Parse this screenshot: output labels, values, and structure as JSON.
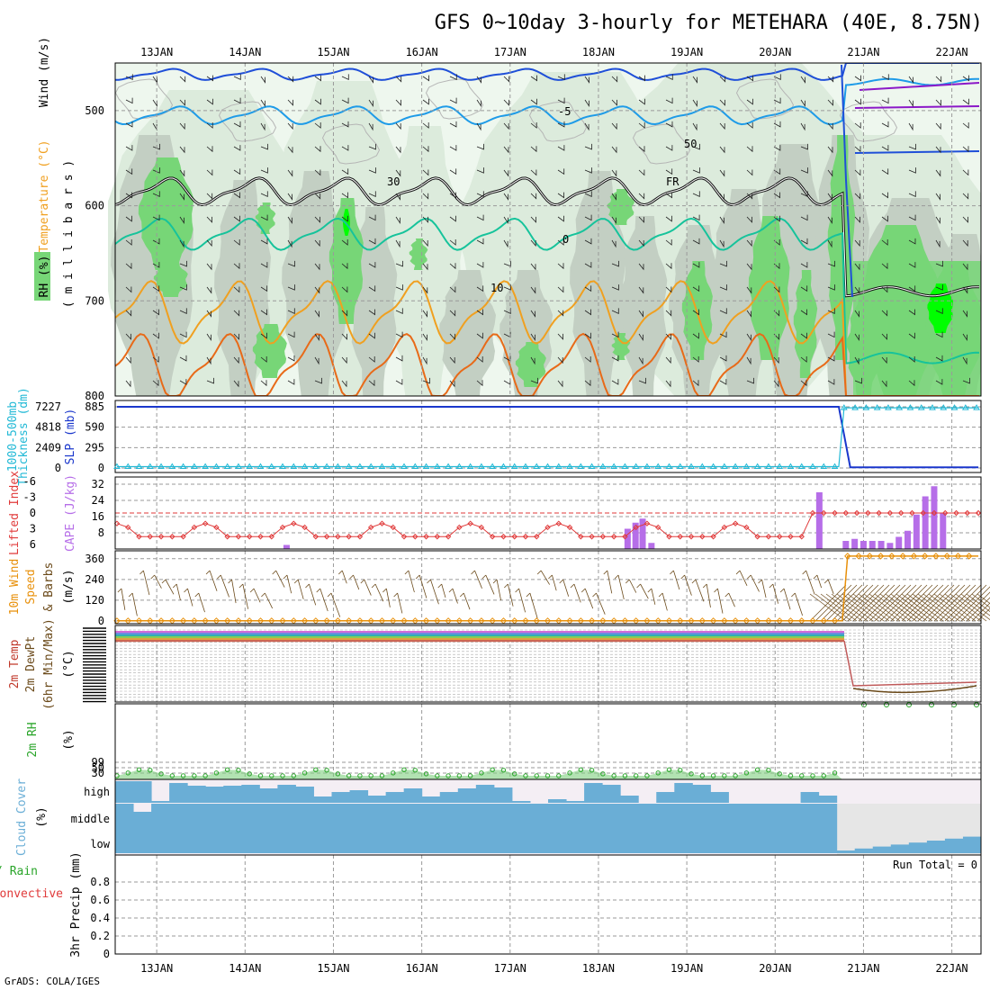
{
  "title": "GFS 0~10day 3-hourly for METEHARA (40E, 8.75N)",
  "footer_credit": "GrADS: COLA/IGES",
  "colors": {
    "rh_dark": "#c3cfc3",
    "rh_mid": "#dcebdc",
    "rh_light": "#eef7ee",
    "rh_green": "#77d677",
    "rh_bright": "#00ff00",
    "temp_blue": "#1f4fd8",
    "temp_lightblue": "#1e9be8",
    "temp_teal": "#16c39b",
    "temp_orange": "#f0a020",
    "temp_darkorange": "#e86a18",
    "temp_purple": "#8b18c8",
    "slp_line": "#1a37cc",
    "thick_line": "#22b9d6",
    "li_line": "#e03a3a",
    "cape_bar": "#b66ee8",
    "wind_speed": "#e8900a",
    "barb": "#6b4a1a",
    "rh2m": "#2aa52a",
    "cloud": "#6aaed6",
    "cloud_bg": "#f4eef4"
  },
  "chart_data": {
    "type": "meteogram",
    "location": "METEHARA (40E, 8.75N)",
    "x_axis": {
      "dates": [
        "13JAN",
        "14JAN",
        "15JAN",
        "16JAN",
        "17JAN",
        "18JAN",
        "19JAN",
        "20JAN",
        "21JAN",
        "22JAN"
      ],
      "start_day": 12.53,
      "end_day": 22.33,
      "step_hours": 3
    },
    "panels": [
      {
        "id": "upper_air",
        "type": "contour_pressure_time",
        "ylabel_parts": [
          "Wind (m/s)",
          "Temperature (°C)",
          "RH (%)",
          "( m i l l i b a r s )"
        ],
        "yticks": [
          500,
          600,
          700,
          800
        ],
        "ylim": [
          450,
          800
        ],
        "contour_labels": [
          "-5",
          "FR",
          "10",
          "30",
          "50",
          "0"
        ],
        "rh_levels": [
          30,
          50,
          70,
          90
        ],
        "isotherms": [
          {
            "name": "-5",
            "color": "temp_lightblue",
            "mean": 505,
            "amp": 8
          },
          {
            "name": "FR",
            "color": "black",
            "mean": 585,
            "amp": 12
          },
          {
            "name": "5",
            "color": "temp_teal",
            "mean": 630,
            "amp": 14
          },
          {
            "name": "10",
            "color": "temp_orange",
            "mean": 712,
            "amp": 28
          },
          {
            "name": "15",
            "color": "temp_darkorange",
            "mean": 770,
            "amp": 30
          }
        ]
      },
      {
        "id": "slp_thickness",
        "type": "line",
        "ylabel_parts": [
          "1000-500mb",
          "Thickness (dm)",
          "SLP (mb)"
        ],
        "ticks_left": [
          "7227",
          "4818",
          "2409",
          "0"
        ],
        "ticks_right": [
          "885",
          "590",
          "295",
          "0"
        ],
        "ylim": [
          0,
          885
        ],
        "series": [
          {
            "name": "SLP",
            "segments": [
              {
                "from": 12.55,
                "to": 20.72,
                "value": 885
              },
              {
                "from": 20.85,
                "to": 22.3,
                "value": 10
              }
            ]
          },
          {
            "name": "Thickness",
            "segments": [
              {
                "from": 12.55,
                "to": 20.72,
                "value": 20
              },
              {
                "from": 20.78,
                "to": 22.3,
                "value": 870
              }
            ]
          }
        ]
      },
      {
        "id": "cape_li",
        "type": "bar_line",
        "ylabel_parts": [
          "Lifted Index",
          "CAPE (J/kg)"
        ],
        "ticks_left": [
          "-6",
          "-3",
          "0",
          "3",
          "6"
        ],
        "ticks_right": [
          "32",
          "24",
          "16",
          "8"
        ],
        "li_ylim": [
          6,
          -6
        ],
        "cape_ylim": [
          0,
          32
        ],
        "cape_bars": [
          {
            "day": 14.47,
            "value": 2
          },
          {
            "day": 18.33,
            "value": 10
          },
          {
            "day": 18.42,
            "value": 13
          },
          {
            "day": 18.5,
            "value": 15
          },
          {
            "day": 18.6,
            "value": 3
          },
          {
            "day": 20.5,
            "value": 28
          },
          {
            "day": 20.8,
            "value": 4
          },
          {
            "day": 20.9,
            "value": 5
          },
          {
            "day": 21.0,
            "value": 4
          },
          {
            "day": 21.1,
            "value": 4
          },
          {
            "day": 21.2,
            "value": 4
          },
          {
            "day": 21.3,
            "value": 3
          },
          {
            "day": 21.4,
            "value": 6
          },
          {
            "day": 21.5,
            "value": 9
          },
          {
            "day": 21.6,
            "value": 17
          },
          {
            "day": 21.7,
            "value": 26
          },
          {
            "day": 21.8,
            "value": 31
          },
          {
            "day": 21.9,
            "value": 18
          }
        ]
      },
      {
        "id": "wind10m",
        "type": "line_barbs",
        "ylabel_parts": [
          "10m Wind",
          "Speed",
          "& Barbs",
          "(m/s)"
        ],
        "yticks": [
          0,
          120,
          240,
          360
        ],
        "ylim": [
          0,
          390
        ],
        "series": [
          {
            "name": "Speed",
            "segments": [
              {
                "from": 12.55,
                "to": 20.76,
                "value": 1
              },
              {
                "from": 20.82,
                "to": 22.3,
                "value": 375
              }
            ]
          }
        ]
      },
      {
        "id": "temp2m",
        "type": "line",
        "ylabel_parts": [
          "2m Temp",
          "2m DewPt",
          "(6hr Min/Max)",
          "(°C)"
        ]
      },
      {
        "id": "rh2m",
        "type": "line",
        "ylabel_parts": [
          "2m RH",
          "(%)"
        ],
        "yticks": [
          "99",
          "50",
          "30"
        ]
      },
      {
        "id": "cloud",
        "type": "area",
        "ylabel_parts": [
          "Cloud Cover",
          "(%)"
        ],
        "layers": [
          "high",
          "middle",
          "low"
        ]
      },
      {
        "id": "precip",
        "type": "bar",
        "ylabel_parts": [
          "Total / Rain",
          "Convective",
          "3hr Precip (mm)"
        ],
        "yticks": [
          "0.8",
          "0.6",
          "0.4",
          "0.2",
          "0"
        ],
        "ylim": [
          0,
          1
        ],
        "values": [],
        "run_total_label": "Run Total = 0"
      }
    ]
  }
}
